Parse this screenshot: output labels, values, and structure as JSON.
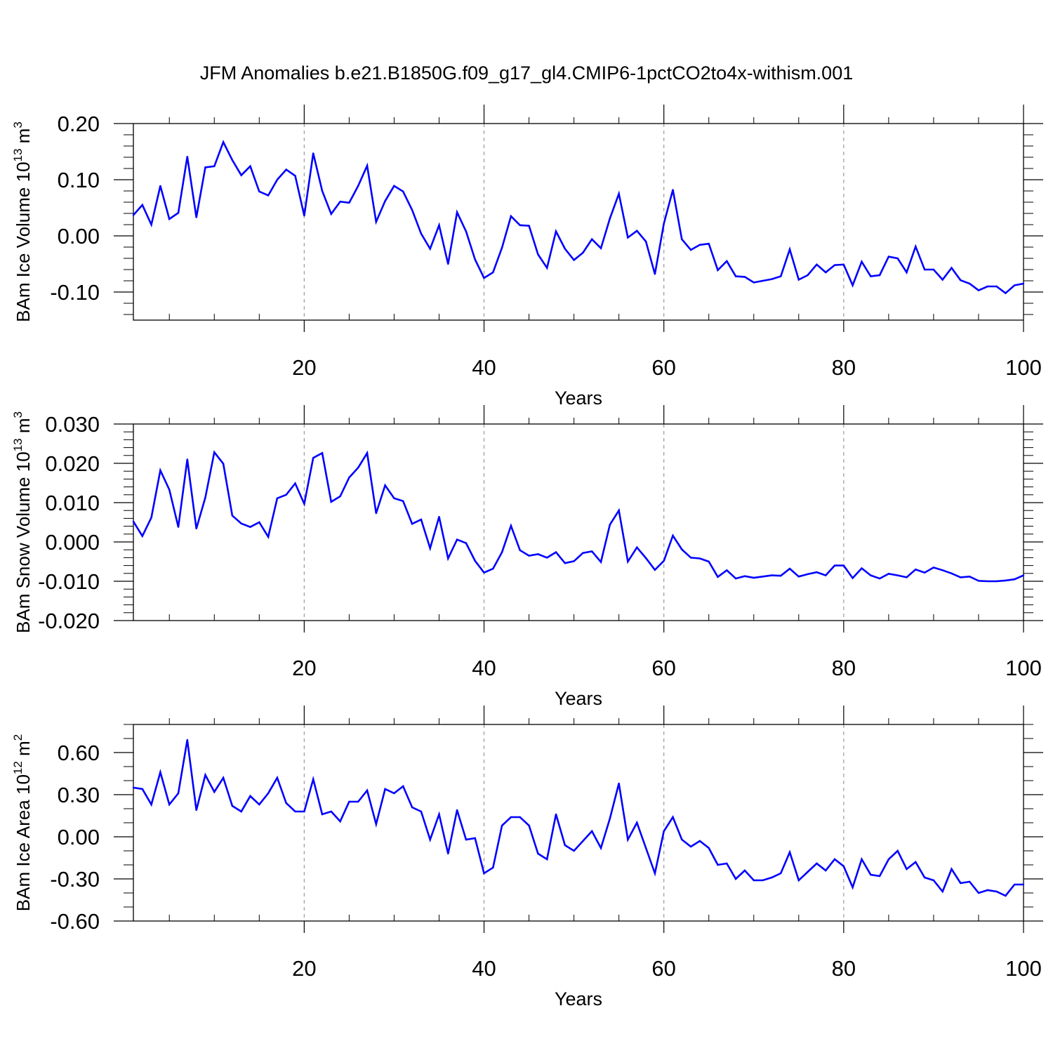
{
  "title": "JFM Anomalies b.e21.B1850G.f09_g17_gl4.CMIP6-1pctCO2to4x-withism.001",
  "chart_data": [
    {
      "type": "line",
      "xlabel": "Years",
      "ylabel": {
        "text": "BAm Ice Volume 10",
        "exp1": "13",
        "unit": " m",
        "exp2": "3"
      },
      "xlim": [
        1,
        100
      ],
      "ylim": [
        -0.15,
        0.2
      ],
      "xticks": [
        "20",
        "40",
        "60",
        "80",
        "100"
      ],
      "yticks": [
        "-0.10",
        "0.00",
        "0.10",
        "0.20"
      ],
      "grid": "vertical dashed at major x ticks",
      "line_color": "#0000ff",
      "x": [
        1,
        2,
        3,
        4,
        5,
        6,
        7,
        8,
        9,
        10,
        11,
        12,
        13,
        14,
        15,
        16,
        17,
        18,
        19,
        20,
        21,
        22,
        23,
        24,
        25,
        26,
        27,
        28,
        29,
        30,
        31,
        32,
        33,
        34,
        35,
        36,
        37,
        38,
        39,
        40,
        41,
        42,
        43,
        44,
        45,
        46,
        47,
        48,
        49,
        50,
        51,
        52,
        53,
        54,
        55,
        56,
        57,
        58,
        59,
        60,
        61,
        62,
        63,
        64,
        65,
        66,
        67,
        68,
        69,
        70,
        71,
        72,
        73,
        74,
        75,
        76,
        77,
        78,
        79,
        80,
        81,
        82,
        83,
        84,
        85,
        86,
        87,
        88,
        89,
        90,
        91,
        92,
        93,
        94,
        95,
        96,
        97,
        98,
        99,
        100
      ],
      "values": [
        0.037,
        0.055,
        0.02,
        0.089,
        0.03,
        0.041,
        0.141,
        0.033,
        0.122,
        0.124,
        0.167,
        0.135,
        0.108,
        0.124,
        0.079,
        0.072,
        0.1,
        0.118,
        0.107,
        0.036,
        0.147,
        0.08,
        0.039,
        0.061,
        0.059,
        0.089,
        0.125,
        0.025,
        0.062,
        0.089,
        0.079,
        0.046,
        0.004,
        -0.023,
        0.019,
        -0.05,
        0.042,
        0.008,
        -0.042,
        -0.075,
        -0.065,
        -0.021,
        0.035,
        0.019,
        0.018,
        -0.033,
        -0.057,
        0.008,
        -0.023,
        -0.043,
        -0.03,
        -0.006,
        -0.022,
        0.031,
        0.075,
        -0.003,
        0.009,
        -0.01,
        -0.068,
        0.022,
        0.082,
        -0.006,
        -0.025,
        -0.016,
        -0.014,
        -0.061,
        -0.045,
        -0.072,
        -0.073,
        -0.083,
        -0.08,
        -0.077,
        -0.072,
        -0.024,
        -0.078,
        -0.07,
        -0.051,
        -0.065,
        -0.052,
        -0.051,
        -0.088,
        -0.046,
        -0.072,
        -0.07,
        -0.037,
        -0.04,
        -0.065,
        -0.019,
        -0.06,
        -0.06,
        -0.078,
        -0.057,
        -0.079,
        -0.085,
        -0.097,
        -0.09,
        -0.09,
        -0.102,
        -0.088,
        -0.085
      ]
    },
    {
      "type": "line",
      "xlabel": "Years",
      "ylabel": {
        "text": "BAm Snow Volume 10",
        "exp1": "13",
        "unit": " m",
        "exp2": "3"
      },
      "xlim": [
        1,
        100
      ],
      "ylim": [
        -0.02,
        0.03
      ],
      "xticks": [
        "20",
        "40",
        "60",
        "80",
        "100"
      ],
      "yticks": [
        "-0.020",
        "-0.010",
        "0.000",
        "0.010",
        "0.020",
        "0.030"
      ],
      "grid": "vertical dashed at major x ticks",
      "line_color": "#0000ff",
      "x": [
        1,
        2,
        3,
        4,
        5,
        6,
        7,
        8,
        9,
        10,
        11,
        12,
        13,
        14,
        15,
        16,
        17,
        18,
        19,
        20,
        21,
        22,
        23,
        24,
        25,
        26,
        27,
        28,
        29,
        30,
        31,
        32,
        33,
        34,
        35,
        36,
        37,
        38,
        39,
        40,
        41,
        42,
        43,
        44,
        45,
        46,
        47,
        48,
        49,
        50,
        51,
        52,
        53,
        54,
        55,
        56,
        57,
        58,
        59,
        60,
        61,
        62,
        63,
        64,
        65,
        66,
        67,
        68,
        69,
        70,
        71,
        72,
        73,
        74,
        75,
        76,
        77,
        78,
        79,
        80,
        81,
        82,
        83,
        84,
        85,
        86,
        87,
        88,
        89,
        90,
        91,
        92,
        93,
        94,
        95,
        96,
        97,
        98,
        99,
        100
      ],
      "values": [
        0.0052,
        0.0015,
        0.0062,
        0.0182,
        0.0133,
        0.0038,
        0.021,
        0.0034,
        0.0113,
        0.0228,
        0.0199,
        0.0067,
        0.0047,
        0.0038,
        0.005,
        0.0013,
        0.0111,
        0.012,
        0.0149,
        0.0097,
        0.0214,
        0.0226,
        0.0102,
        0.0116,
        0.0164,
        0.0189,
        0.0226,
        0.0073,
        0.0144,
        0.0111,
        0.0104,
        0.0046,
        0.0057,
        -0.0016,
        0.0064,
        -0.0042,
        0.0006,
        -0.0003,
        -0.0048,
        -0.0078,
        -0.0068,
        -0.0026,
        0.0041,
        -0.0021,
        -0.0035,
        -0.0031,
        -0.004,
        -0.0026,
        -0.0054,
        -0.0049,
        -0.0028,
        -0.0024,
        -0.0051,
        0.0044,
        0.008,
        -0.005,
        -0.0014,
        -0.0041,
        -0.0071,
        -0.0048,
        0.0016,
        -0.0019,
        -0.004,
        -0.0042,
        -0.005,
        -0.0089,
        -0.0072,
        -0.0093,
        -0.0087,
        -0.0091,
        -0.0088,
        -0.0085,
        -0.0086,
        -0.0068,
        -0.0088,
        -0.0082,
        -0.0077,
        -0.0085,
        -0.006,
        -0.006,
        -0.0092,
        -0.0067,
        -0.0085,
        -0.0093,
        -0.0081,
        -0.0085,
        -0.009,
        -0.007,
        -0.0078,
        -0.0065,
        -0.0072,
        -0.008,
        -0.009,
        -0.0088,
        -0.0099,
        -0.01,
        -0.01,
        -0.0098,
        -0.0095,
        -0.0085
      ]
    },
    {
      "type": "line",
      "xlabel": "Years",
      "ylabel": {
        "text": "BAm Ice Area 10",
        "exp1": "12",
        "unit": " m",
        "exp2": "2"
      },
      "xlim": [
        1,
        100
      ],
      "ylim": [
        -0.6,
        0.8
      ],
      "xticks": [
        "20",
        "40",
        "60",
        "80",
        "100"
      ],
      "yticks": [
        "-0.60",
        "-0.30",
        "0.00",
        "0.30",
        "0.60"
      ],
      "grid": "vertical dashed at major x ticks",
      "line_color": "#0000ff",
      "x": [
        1,
        2,
        3,
        4,
        5,
        6,
        7,
        8,
        9,
        10,
        11,
        12,
        13,
        14,
        15,
        16,
        17,
        18,
        19,
        20,
        21,
        22,
        23,
        24,
        25,
        26,
        27,
        28,
        29,
        30,
        31,
        32,
        33,
        34,
        35,
        36,
        37,
        38,
        39,
        40,
        41,
        42,
        43,
        44,
        45,
        46,
        47,
        48,
        49,
        50,
        51,
        52,
        53,
        54,
        55,
        56,
        57,
        58,
        59,
        60,
        61,
        62,
        63,
        64,
        65,
        66,
        67,
        68,
        69,
        70,
        71,
        72,
        73,
        74,
        75,
        76,
        77,
        78,
        79,
        80,
        81,
        82,
        83,
        84,
        85,
        86,
        87,
        88,
        89,
        90,
        91,
        92,
        93,
        94,
        95,
        96,
        97,
        98,
        99,
        100
      ],
      "values": [
        0.35,
        0.34,
        0.23,
        0.46,
        0.23,
        0.31,
        0.69,
        0.19,
        0.44,
        0.32,
        0.42,
        0.22,
        0.18,
        0.29,
        0.23,
        0.31,
        0.42,
        0.24,
        0.18,
        0.18,
        0.41,
        0.16,
        0.18,
        0.11,
        0.25,
        0.25,
        0.33,
        0.09,
        0.34,
        0.31,
        0.36,
        0.21,
        0.18,
        -0.02,
        0.16,
        -0.12,
        0.19,
        -0.02,
        -0.01,
        -0.26,
        -0.22,
        0.08,
        0.14,
        0.14,
        0.08,
        -0.12,
        -0.16,
        0.16,
        -0.06,
        -0.1,
        -0.03,
        0.04,
        -0.08,
        0.13,
        0.38,
        -0.02,
        0.1,
        -0.08,
        -0.26,
        0.04,
        0.14,
        -0.02,
        -0.07,
        -0.03,
        -0.08,
        -0.2,
        -0.19,
        -0.3,
        -0.24,
        -0.31,
        -0.31,
        -0.29,
        -0.26,
        -0.11,
        -0.31,
        -0.25,
        -0.19,
        -0.24,
        -0.16,
        -0.21,
        -0.36,
        -0.16,
        -0.27,
        -0.28,
        -0.16,
        -0.1,
        -0.23,
        -0.18,
        -0.29,
        -0.31,
        -0.39,
        -0.23,
        -0.33,
        -0.32,
        -0.4,
        -0.38,
        -0.39,
        -0.42,
        -0.34,
        -0.34
      ]
    }
  ]
}
